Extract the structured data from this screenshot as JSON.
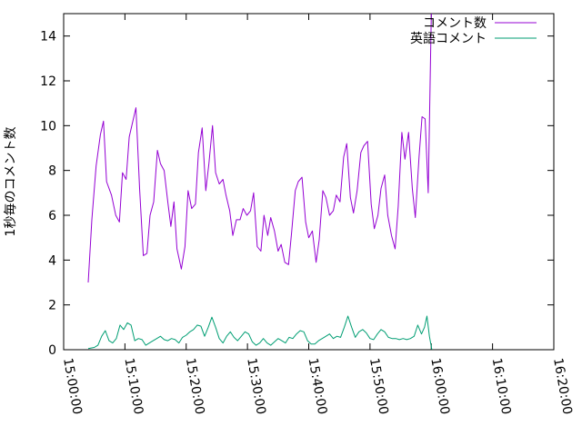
{
  "chart_data": {
    "type": "line",
    "ylabel": "1秒毎のコメント数",
    "xlabel": "",
    "title": "",
    "ylim": [
      0,
      15
    ],
    "yticks": [
      0,
      2,
      4,
      6,
      8,
      10,
      12,
      14
    ],
    "xlim_minutes": [
      0,
      80
    ],
    "xticks": [
      {
        "minute": 0,
        "label": "15:00:00"
      },
      {
        "minute": 10,
        "label": "15:10:00"
      },
      {
        "minute": 20,
        "label": "15:20:00"
      },
      {
        "minute": 30,
        "label": "15:30:00"
      },
      {
        "minute": 40,
        "label": "15:40:00"
      },
      {
        "minute": 50,
        "label": "15:50:00"
      },
      {
        "minute": 60,
        "label": "16:00:00"
      },
      {
        "minute": 70,
        "label": "16:10:00"
      },
      {
        "minute": 80,
        "label": "16:20:00"
      }
    ],
    "legend_position": "top-right",
    "grid": false,
    "series": [
      {
        "name": "コメント数",
        "color": "#9400d3",
        "points": [
          [
            4.0,
            3.0
          ],
          [
            4.6,
            5.8
          ],
          [
            5.3,
            8.2
          ],
          [
            6.0,
            9.6
          ],
          [
            6.5,
            10.2
          ],
          [
            7.0,
            7.5
          ],
          [
            7.8,
            6.9
          ],
          [
            8.5,
            6.0
          ],
          [
            9.1,
            5.7
          ],
          [
            9.6,
            7.9
          ],
          [
            10.2,
            7.6
          ],
          [
            10.7,
            9.5
          ],
          [
            11.3,
            10.2
          ],
          [
            11.8,
            10.8
          ],
          [
            12.4,
            7.2
          ],
          [
            13.0,
            4.2
          ],
          [
            13.6,
            4.3
          ],
          [
            14.1,
            6.0
          ],
          [
            14.7,
            6.6
          ],
          [
            15.3,
            8.9
          ],
          [
            15.8,
            8.3
          ],
          [
            16.4,
            8.0
          ],
          [
            17.0,
            6.6
          ],
          [
            17.5,
            5.5
          ],
          [
            18.0,
            6.6
          ],
          [
            18.5,
            4.5
          ],
          [
            19.2,
            3.6
          ],
          [
            19.8,
            4.6
          ],
          [
            20.3,
            7.1
          ],
          [
            20.9,
            6.3
          ],
          [
            21.5,
            6.5
          ],
          [
            22.0,
            8.8
          ],
          [
            22.6,
            9.9
          ],
          [
            23.2,
            7.1
          ],
          [
            23.7,
            8.3
          ],
          [
            24.3,
            10.0
          ],
          [
            24.8,
            7.9
          ],
          [
            25.4,
            7.4
          ],
          [
            26.0,
            7.6
          ],
          [
            26.5,
            6.9
          ],
          [
            27.1,
            6.2
          ],
          [
            27.6,
            5.1
          ],
          [
            28.2,
            5.8
          ],
          [
            28.8,
            5.8
          ],
          [
            29.3,
            6.3
          ],
          [
            29.9,
            6.0
          ],
          [
            30.5,
            6.2
          ],
          [
            31.0,
            7.0
          ],
          [
            31.6,
            4.6
          ],
          [
            32.2,
            4.4
          ],
          [
            32.7,
            6.0
          ],
          [
            33.3,
            5.1
          ],
          [
            33.8,
            5.9
          ],
          [
            34.4,
            5.3
          ],
          [
            35.0,
            4.4
          ],
          [
            35.5,
            4.7
          ],
          [
            36.1,
            3.9
          ],
          [
            36.7,
            3.8
          ],
          [
            37.2,
            5.2
          ],
          [
            37.8,
            7.1
          ],
          [
            38.3,
            7.5
          ],
          [
            38.9,
            7.7
          ],
          [
            39.5,
            5.7
          ],
          [
            40.0,
            5.0
          ],
          [
            40.6,
            5.3
          ],
          [
            41.2,
            3.9
          ],
          [
            41.7,
            4.9
          ],
          [
            42.3,
            7.1
          ],
          [
            42.8,
            6.8
          ],
          [
            43.4,
            6.0
          ],
          [
            44.0,
            6.2
          ],
          [
            44.5,
            6.9
          ],
          [
            45.1,
            6.6
          ],
          [
            45.7,
            8.6
          ],
          [
            46.2,
            9.2
          ],
          [
            46.8,
            6.8
          ],
          [
            47.3,
            6.1
          ],
          [
            47.9,
            7.1
          ],
          [
            48.5,
            8.8
          ],
          [
            49.0,
            9.1
          ],
          [
            49.6,
            9.3
          ],
          [
            50.2,
            6.5
          ],
          [
            50.7,
            5.4
          ],
          [
            51.3,
            6.0
          ],
          [
            51.8,
            7.2
          ],
          [
            52.4,
            7.8
          ],
          [
            52.9,
            6.0
          ],
          [
            53.5,
            5.1
          ],
          [
            54.1,
            4.5
          ],
          [
            54.6,
            6.4
          ],
          [
            55.2,
            9.7
          ],
          [
            55.7,
            8.5
          ],
          [
            56.3,
            9.7
          ],
          [
            56.9,
            7.2
          ],
          [
            57.4,
            5.9
          ],
          [
            58.0,
            8.6
          ],
          [
            58.5,
            10.4
          ],
          [
            59.0,
            10.3
          ],
          [
            59.5,
            7.0
          ],
          [
            60.0,
            15.0
          ]
        ]
      },
      {
        "name": "英語コメント",
        "color": "#009e73",
        "points": [
          [
            4.0,
            0.05
          ],
          [
            5.0,
            0.1
          ],
          [
            5.6,
            0.2
          ],
          [
            6.2,
            0.6
          ],
          [
            6.8,
            0.85
          ],
          [
            7.4,
            0.4
          ],
          [
            8.0,
            0.3
          ],
          [
            8.6,
            0.5
          ],
          [
            9.2,
            1.1
          ],
          [
            9.8,
            0.9
          ],
          [
            10.4,
            1.2
          ],
          [
            11.0,
            1.1
          ],
          [
            11.6,
            0.4
          ],
          [
            12.2,
            0.5
          ],
          [
            12.8,
            0.45
          ],
          [
            13.4,
            0.2
          ],
          [
            14.0,
            0.3
          ],
          [
            14.6,
            0.4
          ],
          [
            15.2,
            0.5
          ],
          [
            15.8,
            0.6
          ],
          [
            16.4,
            0.45
          ],
          [
            17.0,
            0.4
          ],
          [
            17.6,
            0.5
          ],
          [
            18.2,
            0.45
          ],
          [
            18.8,
            0.3
          ],
          [
            19.4,
            0.55
          ],
          [
            20.0,
            0.65
          ],
          [
            20.6,
            0.8
          ],
          [
            21.2,
            0.9
          ],
          [
            21.8,
            1.1
          ],
          [
            22.4,
            1.05
          ],
          [
            23.0,
            0.6
          ],
          [
            23.6,
            1.0
          ],
          [
            24.2,
            1.45
          ],
          [
            24.8,
            1.0
          ],
          [
            25.4,
            0.5
          ],
          [
            26.0,
            0.3
          ],
          [
            26.6,
            0.6
          ],
          [
            27.2,
            0.8
          ],
          [
            27.8,
            0.55
          ],
          [
            28.4,
            0.4
          ],
          [
            29.0,
            0.6
          ],
          [
            29.6,
            0.8
          ],
          [
            30.2,
            0.7
          ],
          [
            30.8,
            0.35
          ],
          [
            31.4,
            0.2
          ],
          [
            32.0,
            0.3
          ],
          [
            32.6,
            0.5
          ],
          [
            33.2,
            0.3
          ],
          [
            33.8,
            0.2
          ],
          [
            34.4,
            0.35
          ],
          [
            35.0,
            0.5
          ],
          [
            35.6,
            0.4
          ],
          [
            36.2,
            0.3
          ],
          [
            36.8,
            0.55
          ],
          [
            37.4,
            0.5
          ],
          [
            38.0,
            0.7
          ],
          [
            38.6,
            0.85
          ],
          [
            39.2,
            0.8
          ],
          [
            39.8,
            0.4
          ],
          [
            40.4,
            0.25
          ],
          [
            41.0,
            0.25
          ],
          [
            41.6,
            0.4
          ],
          [
            42.2,
            0.5
          ],
          [
            42.8,
            0.6
          ],
          [
            43.4,
            0.7
          ],
          [
            44.0,
            0.5
          ],
          [
            44.6,
            0.6
          ],
          [
            45.2,
            0.55
          ],
          [
            45.8,
            1.0
          ],
          [
            46.4,
            1.5
          ],
          [
            47.0,
            1.0
          ],
          [
            47.6,
            0.55
          ],
          [
            48.2,
            0.8
          ],
          [
            48.8,
            0.9
          ],
          [
            49.4,
            0.75
          ],
          [
            50.0,
            0.5
          ],
          [
            50.6,
            0.45
          ],
          [
            51.2,
            0.7
          ],
          [
            51.8,
            0.9
          ],
          [
            52.4,
            0.8
          ],
          [
            53.0,
            0.55
          ],
          [
            53.6,
            0.5
          ],
          [
            54.2,
            0.5
          ],
          [
            54.8,
            0.45
          ],
          [
            55.4,
            0.5
          ],
          [
            56.0,
            0.45
          ],
          [
            56.6,
            0.5
          ],
          [
            57.2,
            0.6
          ],
          [
            57.8,
            1.1
          ],
          [
            58.4,
            0.7
          ],
          [
            58.9,
            1.0
          ],
          [
            59.3,
            1.5
          ],
          [
            59.7,
            0.6
          ],
          [
            60.1,
            0.0
          ]
        ]
      }
    ]
  }
}
